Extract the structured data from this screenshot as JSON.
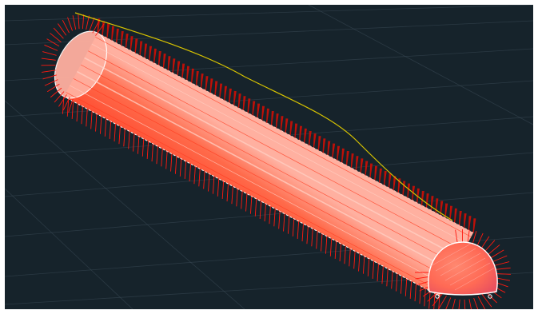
{
  "viewport": {
    "background_color": "#16232b",
    "frame_color": "#ffffff",
    "grid_line_color": "#3c4c58"
  },
  "model": {
    "object": "tunnel-lining-cylinder",
    "body_color": "#ff5a3a",
    "body_highlight_color": "#ffb0a0",
    "radial_load_arrow_color": "#ff1a10",
    "section_outline_color": "#ffffff",
    "curve_color": "#d8c400",
    "arrow_count_along_axis": 80
  }
}
